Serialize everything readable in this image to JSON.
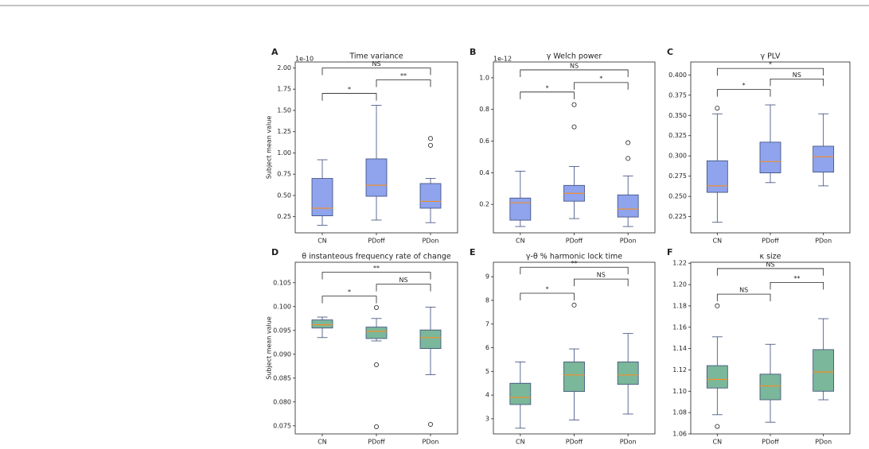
{
  "chart_data": [
    {
      "type": "box",
      "panel": "A",
      "title": "Time variance",
      "ylabel": "Subject mean value",
      "offset_label": "1e-10",
      "categories": [
        "CN",
        "PDoff",
        "PDon"
      ],
      "color": "#8fa4ed",
      "median_color": "#f28e2b",
      "boxes": [
        {
          "whisker_low": 0.15,
          "q1": 0.26,
          "median": 0.35,
          "q3": 0.7,
          "whisker_high": 0.92,
          "outliers": []
        },
        {
          "whisker_low": 0.21,
          "q1": 0.49,
          "median": 0.62,
          "q3": 0.93,
          "whisker_high": 1.56,
          "outliers": []
        },
        {
          "whisker_low": 0.18,
          "q1": 0.35,
          "median": 0.43,
          "q3": 0.64,
          "whisker_high": 0.7,
          "outliers": [
            1.09,
            1.17
          ]
        }
      ],
      "brackets": [
        {
          "from": 0,
          "to": 1,
          "label": "*",
          "y": 1.7
        },
        {
          "from": 1,
          "to": 2,
          "label": "**",
          "y": 1.86
        },
        {
          "from": 0,
          "to": 2,
          "label": "NS",
          "y": 2.0
        }
      ],
      "ylim": [
        0.06,
        2.07
      ],
      "yticks": [
        0.25,
        {
          "value": 0.5,
          "label": "0.50"
        },
        0.75,
        {
          "value": 1,
          "label": "1.00"
        },
        1.25,
        {
          "value": 1.5,
          "label": "1.50"
        },
        1.75,
        {
          "value": 2,
          "label": "2.00"
        }
      ]
    },
    {
      "type": "box",
      "panel": "B",
      "title": "γ Welch power",
      "offset_label": "1e-12",
      "categories": [
        "CN",
        "PDoff",
        "PDon"
      ],
      "color": "#8fa4ed",
      "median_color": "#f28e2b",
      "boxes": [
        {
          "whisker_low": 0.06,
          "q1": 0.1,
          "median": 0.21,
          "q3": 0.24,
          "whisker_high": 0.41,
          "outliers": []
        },
        {
          "whisker_low": 0.11,
          "q1": 0.22,
          "median": 0.27,
          "q3": 0.32,
          "whisker_high": 0.44,
          "outliers": [
            0.69,
            0.83
          ]
        },
        {
          "whisker_low": 0.06,
          "q1": 0.12,
          "median": 0.17,
          "q3": 0.26,
          "whisker_high": 0.38,
          "outliers": [
            0.49,
            0.59
          ]
        }
      ],
      "brackets": [
        {
          "from": 0,
          "to": 1,
          "label": "*",
          "y": 0.91
        },
        {
          "from": 1,
          "to": 2,
          "label": "*",
          "y": 0.97
        },
        {
          "from": 0,
          "to": 2,
          "label": "NS",
          "y": 1.05
        }
      ],
      "ylim": [
        0.02,
        1.1
      ],
      "yticks": [
        0.2,
        0.4,
        0.6,
        0.8,
        {
          "value": 1,
          "label": "1.0"
        }
      ]
    },
    {
      "type": "box",
      "panel": "C",
      "title": "γ PLV",
      "categories": [
        "CN",
        "PDoff",
        "PDon"
      ],
      "color": "#8fa4ed",
      "median_color": "#f28e2b",
      "boxes": [
        {
          "whisker_low": 0.218,
          "q1": 0.255,
          "median": 0.263,
          "q3": 0.294,
          "whisker_high": 0.352,
          "outliers": [
            0.359
          ]
        },
        {
          "whisker_low": 0.267,
          "q1": 0.279,
          "median": 0.293,
          "q3": 0.317,
          "whisker_high": 0.363,
          "outliers": []
        },
        {
          "whisker_low": 0.263,
          "q1": 0.28,
          "median": 0.299,
          "q3": 0.312,
          "whisker_high": 0.352,
          "outliers": []
        }
      ],
      "brackets": [
        {
          "from": 0,
          "to": 1,
          "label": "*",
          "y": 0.382
        },
        {
          "from": 1,
          "to": 2,
          "label": "NS",
          "y": 0.395
        },
        {
          "from": 0,
          "to": 2,
          "label": "*",
          "y": 0.408
        }
      ],
      "ylim": [
        0.205,
        0.416
      ],
      "yticks": [
        0.225,
        {
          "value": 0.25,
          "label": "0.250"
        },
        0.275,
        {
          "value": 0.3,
          "label": "0.300"
        },
        0.325,
        {
          "value": 0.35,
          "label": "0.350"
        },
        0.375,
        {
          "value": 0.4,
          "label": "0.400"
        }
      ]
    },
    {
      "type": "box",
      "panel": "D",
      "title": "θ instanteous frequency rate of change",
      "ylabel": "Subject mean value",
      "categories": [
        "CN",
        "PDoff",
        "PDon"
      ],
      "color": "#7bb79a",
      "median_color": "#f28e2b",
      "boxes": [
        {
          "whisker_low": 0.0935,
          "q1": 0.0955,
          "median": 0.0962,
          "q3": 0.0972,
          "whisker_high": 0.0978,
          "outliers": []
        },
        {
          "whisker_low": 0.0928,
          "q1": 0.0933,
          "median": 0.0948,
          "q3": 0.0957,
          "whisker_high": 0.0975,
          "outliers": [
            0.0998,
            0.0878,
            0.0748
          ]
        },
        {
          "whisker_low": 0.0857,
          "q1": 0.0912,
          "median": 0.0935,
          "q3": 0.0951,
          "whisker_high": 0.0999,
          "outliers": [
            0.0753
          ]
        }
      ],
      "brackets": [
        {
          "from": 0,
          "to": 1,
          "label": "*",
          "y": 0.1022
        },
        {
          "from": 1,
          "to": 2,
          "label": "NS",
          "y": 0.1047
        },
        {
          "from": 0,
          "to": 2,
          "label": "**",
          "y": 0.1072
        }
      ],
      "ylim": [
        0.0733,
        0.1093
      ],
      "yticks": [
        0.075,
        {
          "value": 0.08,
          "label": "0.080"
        },
        0.085,
        {
          "value": 0.09,
          "label": "0.090"
        },
        0.095,
        {
          "value": 0.1,
          "label": "0.100"
        },
        0.105
      ]
    },
    {
      "type": "box",
      "panel": "E",
      "title": "γ-θ % harmonic lock time",
      "categories": [
        "CN",
        "PDoff",
        "PDon"
      ],
      "color": "#7bb79a",
      "median_color": "#f28e2b",
      "boxes": [
        {
          "whisker_low": 2.6,
          "q1": 3.6,
          "median": 3.9,
          "q3": 4.5,
          "whisker_high": 5.4,
          "outliers": []
        },
        {
          "whisker_low": 2.95,
          "q1": 4.15,
          "median": 4.85,
          "q3": 5.4,
          "whisker_high": 5.95,
          "outliers": [
            7.8
          ]
        },
        {
          "whisker_low": 3.2,
          "q1": 4.45,
          "median": 4.85,
          "q3": 5.4,
          "whisker_high": 6.6,
          "outliers": []
        }
      ],
      "brackets": [
        {
          "from": 0,
          "to": 1,
          "label": "*",
          "y": 8.3
        },
        {
          "from": 1,
          "to": 2,
          "label": "NS",
          "y": 8.9
        },
        {
          "from": 0,
          "to": 2,
          "label": "**",
          "y": 9.4
        }
      ],
      "ylim": [
        2.36,
        9.61
      ],
      "yticks": [
        3,
        4,
        5,
        6,
        7,
        8,
        9
      ]
    },
    {
      "type": "box",
      "panel": "F",
      "title": "κ size",
      "categories": [
        "CN",
        "PDoff",
        "PDon"
      ],
      "color": "#7bb79a",
      "median_color": "#f28e2b",
      "boxes": [
        {
          "whisker_low": 1.078,
          "q1": 1.103,
          "median": 1.111,
          "q3": 1.124,
          "whisker_high": 1.151,
          "outliers": [
            1.18,
            1.067
          ]
        },
        {
          "whisker_low": 1.071,
          "q1": 1.092,
          "median": 1.105,
          "q3": 1.116,
          "whisker_high": 1.144,
          "outliers": []
        },
        {
          "whisker_low": 1.092,
          "q1": 1.1,
          "median": 1.118,
          "q3": 1.139,
          "whisker_high": 1.168,
          "outliers": []
        }
      ],
      "brackets": [
        {
          "from": 0,
          "to": 1,
          "label": "NS",
          "y": 1.191
        },
        {
          "from": 1,
          "to": 2,
          "label": "**",
          "y": 1.202
        },
        {
          "from": 0,
          "to": 2,
          "label": "NS",
          "y": 1.215
        }
      ],
      "ylim": [
        1.06,
        1.2209
      ],
      "yticks": [
        1.06,
        1.08,
        {
          "value": 1.1,
          "label": "1.10"
        },
        1.12,
        1.14,
        1.16,
        1.18,
        {
          "value": 1.2,
          "label": "1.20"
        },
        1.22
      ]
    }
  ]
}
